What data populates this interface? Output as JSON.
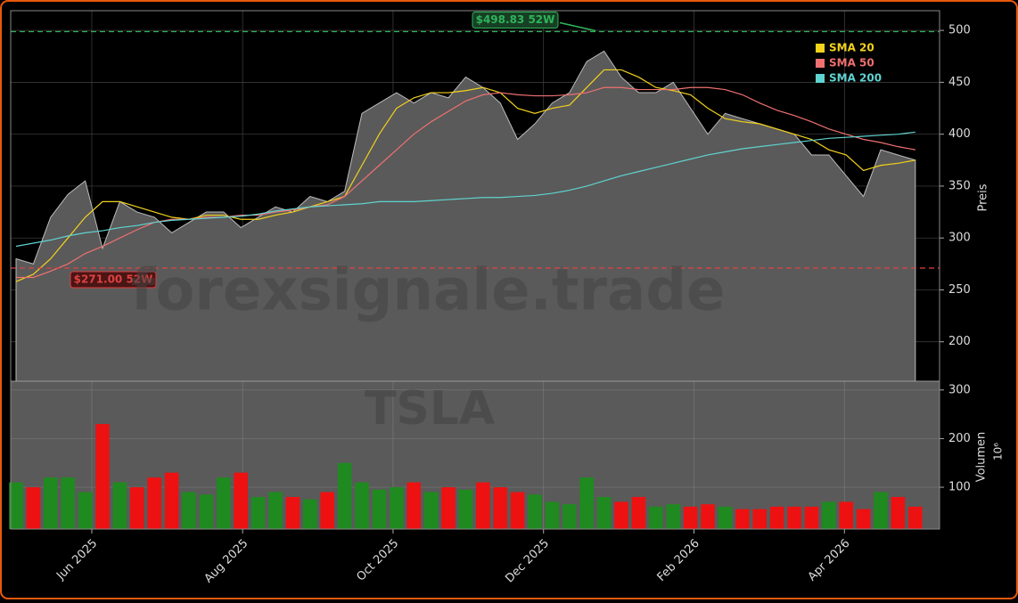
{
  "chart_data": {
    "type": "line",
    "x": [
      0,
      1,
      2,
      3,
      4,
      5,
      6,
      7,
      8,
      9,
      10,
      11,
      12,
      13,
      14,
      15,
      16,
      17,
      18,
      19,
      20,
      21,
      22,
      23,
      24,
      25,
      26,
      27,
      28,
      29,
      30,
      31,
      32,
      33,
      34,
      35,
      36,
      37,
      38,
      39,
      40,
      41,
      42,
      43,
      44,
      45,
      46,
      47,
      48,
      49,
      50,
      51,
      52
    ],
    "values": [
      280,
      275,
      320,
      342,
      355,
      290,
      335,
      325,
      320,
      305,
      315,
      325,
      325,
      310,
      320,
      330,
      325,
      340,
      335,
      345,
      420,
      430,
      440,
      430,
      440,
      435,
      455,
      445,
      430,
      395,
      410,
      430,
      440,
      470,
      480,
      455,
      440,
      440,
      450,
      425,
      400,
      420,
      415,
      410,
      405,
      400,
      380,
      380,
      360,
      340,
      385,
      380,
      375
    ],
    "color": "#5a5a5a",
    "series": [
      {
        "name": "SMA 20",
        "color": "#f2d21b",
        "values": [
          258,
          265,
          280,
          300,
          320,
          335,
          335,
          330,
          325,
          320,
          318,
          322,
          322,
          318,
          318,
          322,
          325,
          330,
          335,
          340,
          370,
          400,
          425,
          435,
          440,
          440,
          442,
          445,
          440,
          425,
          420,
          425,
          428,
          445,
          462,
          462,
          455,
          445,
          442,
          438,
          425,
          415,
          412,
          410,
          405,
          400,
          395,
          385,
          380,
          365,
          370,
          372,
          375
        ]
      },
      {
        "name": "SMA 50",
        "color": "#f07070",
        "values": [
          262,
          262,
          268,
          275,
          285,
          292,
          300,
          308,
          315,
          318,
          318,
          320,
          320,
          322,
          322,
          325,
          327,
          330,
          332,
          340,
          355,
          370,
          385,
          400,
          412,
          422,
          432,
          438,
          440,
          438,
          437,
          437,
          438,
          440,
          445,
          445,
          443,
          443,
          443,
          445,
          445,
          443,
          438,
          430,
          423,
          418,
          412,
          405,
          400,
          395,
          392,
          388,
          385
        ]
      },
      {
        "name": "SMA 200",
        "color": "#5fd3d0",
        "values": [
          292,
          295,
          298,
          302,
          305,
          307,
          310,
          312,
          315,
          317,
          318,
          319,
          320,
          321,
          323,
          326,
          328,
          330,
          331,
          332,
          333,
          335,
          335,
          335,
          336,
          337,
          338,
          339,
          339,
          340,
          341,
          343,
          346,
          350,
          355,
          360,
          364,
          368,
          372,
          376,
          380,
          383,
          386,
          388,
          390,
          392,
          394,
          396,
          397,
          398,
          399,
          400,
          402
        ]
      }
    ],
    "hlines": [
      {
        "value": 498.83,
        "label": "$498.83 52W",
        "color": "#2fb35a"
      },
      {
        "value": 271.0,
        "label": "$271.00 52W",
        "color": "#e04040"
      }
    ],
    "xlim": [
      -0.31,
      53.4
    ],
    "xticks": [
      {
        "value": 4.38,
        "label": "Jun 2025"
      },
      {
        "value": 13.1,
        "label": "Aug 2025"
      },
      {
        "value": 21.8,
        "label": "Oct 2025"
      },
      {
        "value": 30.5,
        "label": "Dec 2025"
      },
      {
        "value": 39.2,
        "label": "Feb 2026"
      },
      {
        "value": 47.9,
        "label": "Apr 2026"
      }
    ],
    "ylim": [
      162,
      519
    ],
    "yticks": [
      200,
      250,
      300,
      350,
      400,
      450,
      500
    ],
    "ylabel": "Preis",
    "grid": true,
    "legend": "upper right",
    "watermark": "forexsignale.trade",
    "volume": {
      "values": [
        110,
        100,
        120,
        120,
        90,
        230,
        110,
        100,
        120,
        130,
        90,
        85,
        120,
        130,
        80,
        90,
        80,
        75,
        90,
        150,
        110,
        95,
        100,
        110,
        90,
        100,
        95,
        110,
        100,
        90,
        85,
        70,
        65,
        120,
        80,
        70,
        80,
        60,
        65,
        60,
        65,
        60,
        55,
        55,
        60,
        60,
        60,
        70,
        70,
        55,
        90,
        80,
        60
      ],
      "up_color": "#1f8a1f",
      "down_color": "#ee1111",
      "ylim": [
        14,
        318
      ],
      "yticks": [
        100,
        200,
        300
      ],
      "ylabel": "Volumen",
      "unit": "10⁶",
      "watermark": "TSLA"
    }
  }
}
